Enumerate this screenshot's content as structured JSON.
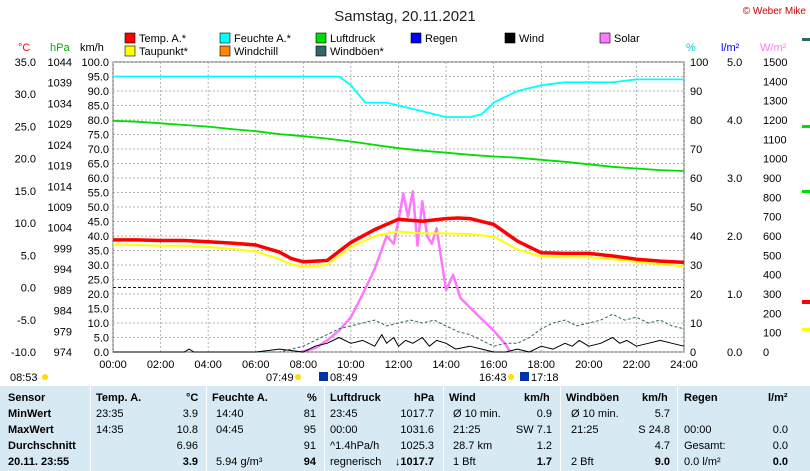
{
  "title": "Samstag, 20.11.2021",
  "copyright": "© Weber Mike",
  "legend": [
    {
      "label": "Temp. A.*",
      "color": "#ff0000"
    },
    {
      "label": "Feuchte A.*",
      "color": "#00ffff"
    },
    {
      "label": "Luftdruck",
      "color": "#00dd00"
    },
    {
      "label": "Regen",
      "color": "#0000ff"
    },
    {
      "label": "Wind",
      "color": "#000000"
    },
    {
      "label": "Solar",
      "color": "#ff77ff"
    },
    {
      "label": "Taupunkt*",
      "color": "#ffff00"
    },
    {
      "label": "Windchill",
      "color": "#ff8800"
    },
    {
      "label": "Windböen*",
      "color": "#336666"
    }
  ],
  "axis_units": {
    "temp": "°C",
    "hpa": "hPa",
    "kmh": "km/h",
    "humidity": "%",
    "rain": "l/m²",
    "solar": "W/m²"
  },
  "sun": {
    "dawn": "07:49",
    "sunrise": "08:49",
    "sunset": "16:43",
    "dusk": "17:18",
    "left_time": "08:53"
  },
  "chart_data": {
    "type": "line",
    "x_label": "",
    "x_ticks": [
      "00:00",
      "02:00",
      "04:00",
      "06:00",
      "08:00",
      "10:00",
      "12:00",
      "14:00",
      "16:00",
      "18:00",
      "20:00",
      "22:00",
      "24:00"
    ],
    "axes": {
      "temp": {
        "unit": "°C",
        "range": [
          -10,
          35
        ],
        "ticks": [
          "35.0",
          "30.0",
          "25.0",
          "20.0",
          "15.0",
          "10.0",
          "5.0",
          "0.0",
          "-5.0",
          "-10.0"
        ]
      },
      "pressure": {
        "unit": "hPa",
        "range": [
          974,
          1044
        ],
        "ticks": [
          "1044",
          "1039",
          "1034",
          "1029",
          "1024",
          "1019",
          "1014",
          "1009",
          "1004",
          "999",
          "994",
          "989",
          "984",
          "979",
          "974"
        ]
      },
      "wind": {
        "unit": "km/h",
        "range": [
          0,
          100
        ],
        "ticks": [
          "100.0",
          "95.0",
          "90.0",
          "85.0",
          "80.0",
          "75.0",
          "70.0",
          "65.0",
          "60.0",
          "55.0",
          "50.0",
          "45.0",
          "40.0",
          "35.0",
          "30.0",
          "25.0",
          "20.0",
          "15.0",
          "10.0",
          "5.0",
          "0.0"
        ]
      },
      "humidity": {
        "unit": "%",
        "range": [
          0,
          100
        ],
        "ticks": [
          "100",
          "90",
          "80",
          "70",
          "60",
          "50",
          "40",
          "30",
          "20",
          "10",
          "0"
        ]
      },
      "rain": {
        "unit": "l/m²",
        "range": [
          0,
          5
        ],
        "ticks": [
          "5.0",
          "4.0",
          "3.0",
          "2.0",
          "1.0",
          "0.0"
        ]
      },
      "solar": {
        "unit": "W/m²",
        "range": [
          0,
          1500
        ],
        "ticks": [
          "1500",
          "1400",
          "1300",
          "1200",
          "1100",
          "1000",
          "900",
          "800",
          "700",
          "600",
          "500",
          "400",
          "300",
          "200",
          "100",
          "0"
        ]
      }
    },
    "series": [
      {
        "name": "Temp. A.*",
        "axis": "temp",
        "color": "#ff0000",
        "points": [
          [
            0,
            7.4
          ],
          [
            1,
            7.4
          ],
          [
            2,
            7.3
          ],
          [
            3,
            7.3
          ],
          [
            4,
            7.1
          ],
          [
            5,
            6.9
          ],
          [
            6,
            6.6
          ],
          [
            7,
            5.5
          ],
          [
            7.5,
            4.5
          ],
          [
            8,
            4.0
          ],
          [
            9,
            4.2
          ],
          [
            10,
            7.0
          ],
          [
            11,
            9.0
          ],
          [
            12,
            10.6
          ],
          [
            13,
            10.3
          ],
          [
            14,
            10.7
          ],
          [
            14.5,
            10.8
          ],
          [
            15,
            10.7
          ],
          [
            16,
            9.8
          ],
          [
            17,
            7.2
          ],
          [
            18,
            5.4
          ],
          [
            19,
            5.3
          ],
          [
            20,
            5.3
          ],
          [
            21,
            4.9
          ],
          [
            22,
            4.4
          ],
          [
            23,
            4.1
          ],
          [
            24,
            3.9
          ]
        ]
      },
      {
        "name": "Taupunkt*",
        "axis": "temp",
        "color": "#ffff00",
        "points": [
          [
            0,
            6.7
          ],
          [
            1,
            6.6
          ],
          [
            2,
            6.5
          ],
          [
            3,
            6.5
          ],
          [
            4,
            6.3
          ],
          [
            5,
            6.0
          ],
          [
            6,
            5.6
          ],
          [
            7,
            4.4
          ],
          [
            7.5,
            3.6
          ],
          [
            8,
            3.2
          ],
          [
            9,
            3.5
          ],
          [
            10,
            6.3
          ],
          [
            11,
            8.0
          ],
          [
            12,
            8.7
          ],
          [
            13,
            8.4
          ],
          [
            14,
            8.4
          ],
          [
            15,
            8.3
          ],
          [
            16,
            7.9
          ],
          [
            17,
            5.9
          ],
          [
            18,
            4.8
          ],
          [
            19,
            4.7
          ],
          [
            20,
            4.7
          ],
          [
            21,
            4.4
          ],
          [
            22,
            4.0
          ],
          [
            23,
            3.6
          ],
          [
            24,
            3.3
          ]
        ]
      },
      {
        "name": "Feuchte A.*",
        "axis": "humidity",
        "color": "#00ffff",
        "points": [
          [
            0,
            95
          ],
          [
            2,
            95
          ],
          [
            4,
            95
          ],
          [
            6,
            95
          ],
          [
            8,
            95
          ],
          [
            9,
            95
          ],
          [
            9.5,
            95
          ],
          [
            10,
            92
          ],
          [
            10.6,
            86
          ],
          [
            11.5,
            86
          ],
          [
            12,
            85
          ],
          [
            13,
            83
          ],
          [
            14,
            81
          ],
          [
            15,
            81
          ],
          [
            15.5,
            82
          ],
          [
            16,
            86
          ],
          [
            17,
            90
          ],
          [
            18,
            92
          ],
          [
            19,
            93
          ],
          [
            20,
            93
          ],
          [
            21,
            93
          ],
          [
            22,
            94
          ],
          [
            23,
            94
          ],
          [
            24,
            94
          ]
        ]
      },
      {
        "name": "Luftdruck",
        "axis": "pressure",
        "color": "#00dd00",
        "points": [
          [
            0,
            1029.8
          ],
          [
            1,
            1029.6
          ],
          [
            2,
            1029.2
          ],
          [
            3,
            1028.8
          ],
          [
            4,
            1028.4
          ],
          [
            5,
            1027.8
          ],
          [
            6,
            1027.3
          ],
          [
            7,
            1026.6
          ],
          [
            8,
            1026.1
          ],
          [
            9,
            1025.5
          ],
          [
            10,
            1024.8
          ],
          [
            11,
            1024.0
          ],
          [
            12,
            1023.2
          ],
          [
            13,
            1022.6
          ],
          [
            14,
            1022.1
          ],
          [
            15,
            1021.6
          ],
          [
            16,
            1021.2
          ],
          [
            17,
            1020.9
          ],
          [
            18,
            1020.4
          ],
          [
            19,
            1019.9
          ],
          [
            20,
            1019.3
          ],
          [
            21,
            1018.7
          ],
          [
            22,
            1018.3
          ],
          [
            23,
            1017.9
          ],
          [
            24,
            1017.7
          ]
        ]
      },
      {
        "name": "Solar",
        "axis": "solar",
        "color": "#ff77ff",
        "points": [
          [
            7.9,
            0
          ],
          [
            8.5,
            20
          ],
          [
            9,
            60
          ],
          [
            9.5,
            110
          ],
          [
            10,
            180
          ],
          [
            10.5,
            300
          ],
          [
            11,
            430
          ],
          [
            11.5,
            600
          ],
          [
            11.8,
            560
          ],
          [
            12,
            680
          ],
          [
            12.2,
            820
          ],
          [
            12.4,
            700
          ],
          [
            12.6,
            830
          ],
          [
            12.8,
            550
          ],
          [
            13,
            780
          ],
          [
            13.2,
            600
          ],
          [
            13.4,
            560
          ],
          [
            13.6,
            640
          ],
          [
            13.8,
            480
          ],
          [
            14,
            320
          ],
          [
            14.3,
            400
          ],
          [
            14.6,
            280
          ],
          [
            15,
            230
          ],
          [
            15.5,
            170
          ],
          [
            16,
            110
          ],
          [
            16.5,
            40
          ],
          [
            16.7,
            0
          ]
        ]
      },
      {
        "name": "Wind",
        "axis": "wind",
        "color": "#000000",
        "points": [
          [
            0,
            0
          ],
          [
            3,
            0
          ],
          [
            3.2,
            1
          ],
          [
            3.4,
            0
          ],
          [
            6,
            0
          ],
          [
            7,
            1
          ],
          [
            8,
            0
          ],
          [
            8.5,
            2
          ],
          [
            9,
            3
          ],
          [
            9.5,
            5
          ],
          [
            10,
            3
          ],
          [
            10.5,
            4
          ],
          [
            11,
            2
          ],
          [
            11.3,
            6
          ],
          [
            11.5,
            3
          ],
          [
            11.8,
            5
          ],
          [
            12,
            2
          ],
          [
            12.3,
            4
          ],
          [
            12.6,
            3
          ],
          [
            13,
            5
          ],
          [
            13.3,
            2
          ],
          [
            13.6,
            4
          ],
          [
            14,
            3
          ],
          [
            14.4,
            1
          ],
          [
            15,
            2
          ],
          [
            15.5,
            1
          ],
          [
            16,
            0
          ],
          [
            16.5,
            0
          ],
          [
            17,
            1
          ],
          [
            17.5,
            0
          ],
          [
            18,
            2
          ],
          [
            18.5,
            1
          ],
          [
            19,
            3
          ],
          [
            19.3,
            2
          ],
          [
            19.6,
            4
          ],
          [
            20,
            2
          ],
          [
            20.5,
            3
          ],
          [
            21,
            5
          ],
          [
            21.3,
            3
          ],
          [
            21.6,
            4
          ],
          [
            22,
            2
          ],
          [
            22.5,
            3
          ],
          [
            23,
            4
          ],
          [
            23.5,
            3
          ],
          [
            24,
            2
          ]
        ]
      },
      {
        "name": "Windböen*",
        "axis": "wind",
        "color": "#336666",
        "points": [
          [
            0,
            0
          ],
          [
            7,
            0
          ],
          [
            8,
            2
          ],
          [
            8.5,
            4
          ],
          [
            9,
            6
          ],
          [
            9.5,
            8
          ],
          [
            10,
            9
          ],
          [
            10.5,
            10
          ],
          [
            11,
            11
          ],
          [
            11.5,
            9
          ],
          [
            12,
            10
          ],
          [
            12.5,
            11
          ],
          [
            13,
            10
          ],
          [
            13.5,
            11
          ],
          [
            14,
            9
          ],
          [
            14.5,
            7
          ],
          [
            15,
            6
          ],
          [
            15.5,
            4
          ],
          [
            16,
            2
          ],
          [
            16.5,
            3
          ],
          [
            17,
            3
          ],
          [
            17.5,
            5
          ],
          [
            18,
            8
          ],
          [
            18.5,
            10
          ],
          [
            19,
            11
          ],
          [
            19.5,
            9
          ],
          [
            20,
            10
          ],
          [
            20.5,
            11
          ],
          [
            21,
            13
          ],
          [
            21.5,
            11
          ],
          [
            22,
            12
          ],
          [
            22.5,
            10
          ],
          [
            23,
            11
          ],
          [
            23.5,
            9
          ],
          [
            24,
            8
          ]
        ]
      }
    ]
  },
  "table": {
    "headers": {
      "sensor": "Sensor",
      "temp": "Temp. A.",
      "temp_unit": "°C",
      "hum": "Feuchte A.",
      "hum_unit": "%",
      "pres": "Luftdruck",
      "pres_unit": "hPa",
      "wind": "Wind",
      "wind_unit": "km/h",
      "gust": "Windböen",
      "gust_unit": "km/h",
      "rain": "Regen",
      "rain_unit": "l/m²"
    },
    "rows": [
      {
        "label": "MinWert",
        "temp_time": "23:35",
        "temp_val": "3.9",
        "hum_time": "14:40",
        "hum_val": "81",
        "pres_time": "23:45",
        "pres_val": "1017.7",
        "wind_text": "Ø 10 min.",
        "wind_val": "0.9",
        "gust_text": "Ø 10 min.",
        "gust_val": "5.7",
        "rain_text": "",
        "rain_val": ""
      },
      {
        "label": "MaxWert",
        "temp_time": "14:35",
        "temp_val": "10.8",
        "hum_time": "04:45",
        "hum_val": "95",
        "pres_time": "00:00",
        "pres_val": "1031.6",
        "wind_text": "21:25",
        "wind_val": "SW 7.1",
        "gust_text": "21:25",
        "gust_val": "S 24.8",
        "rain_text": "00:00",
        "rain_val": "0.0"
      },
      {
        "label": "Durchschnitt",
        "temp_time": "",
        "temp_val": "6.96",
        "hum_time": "",
        "hum_val": "91",
        "pres_time": "^1.4hPa/h",
        "pres_val": "1025.3",
        "wind_text": "28.7 km",
        "wind_val": "1.2",
        "gust_text": "",
        "gust_val": "4.7",
        "rain_text": "Gesamt:",
        "rain_val": "0.0"
      },
      {
        "label": "20.11. 23:55",
        "temp_time": "",
        "temp_val": "3.9",
        "hum_time": "5.94 g/m³",
        "hum_val": "94",
        "pres_time": "regnerisch",
        "pres_val": "↓1017.7",
        "wind_text": "1 Bft",
        "wind_val": "1.7",
        "gust_text": "2 Bft",
        "gust_val": "9.0",
        "rain_text": "0.0 l/m²",
        "rain_val": "0.0"
      }
    ]
  }
}
